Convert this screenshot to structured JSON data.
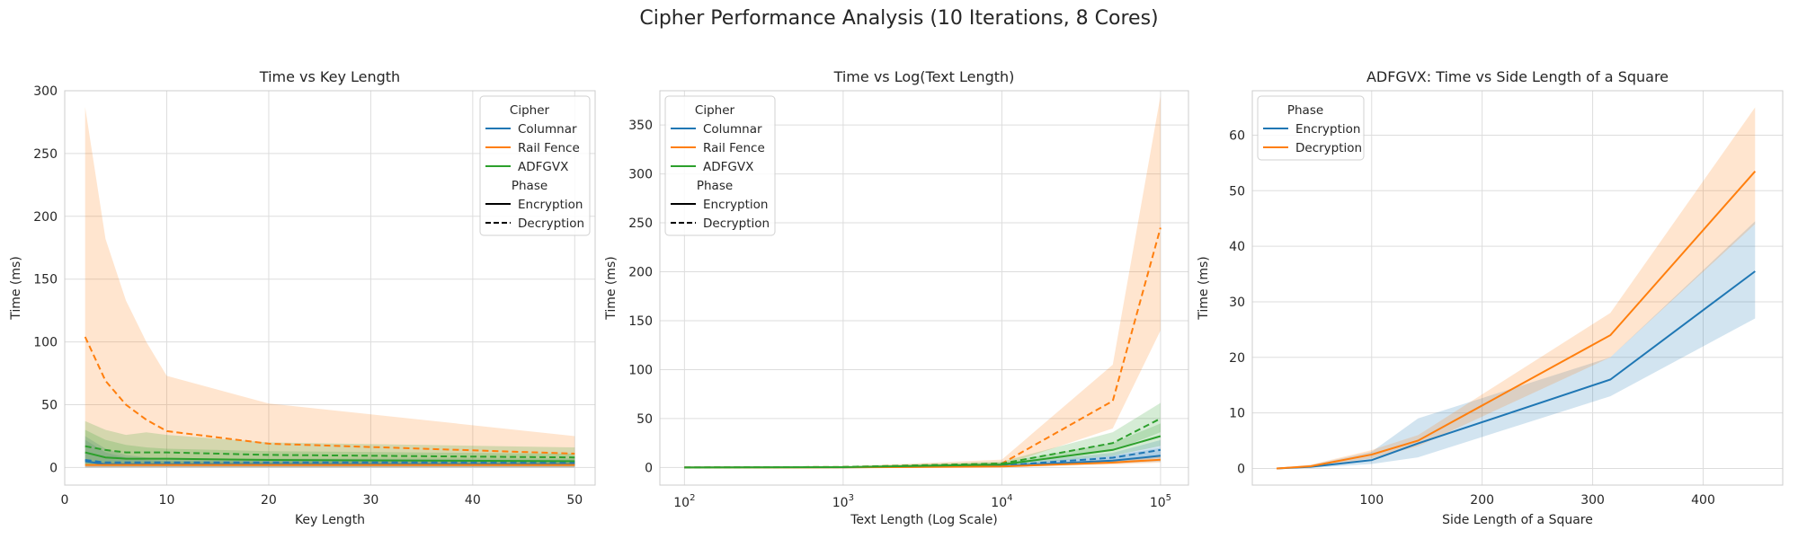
{
  "figure": {
    "title": "Cipher Performance Analysis (10 Iterations, 8 Cores)"
  },
  "colors": {
    "columnar": "#1f77b4",
    "rail_fence": "#ff7f0e",
    "adfgvx": "#2ca02c",
    "grid": "#dddddd",
    "spine": "#cccccc"
  },
  "chart_data": [
    {
      "type": "line",
      "title": "Time vs Key Length",
      "xlabel": "Key Length",
      "ylabel": "Time (ms)",
      "xscale": "linear",
      "xlim": [
        0,
        52
      ],
      "ylim": [
        -14,
        300
      ],
      "xticks": [
        0,
        10,
        20,
        30,
        40,
        50
      ],
      "yticks": [
        0,
        50,
        100,
        150,
        200,
        250,
        300
      ],
      "grid": true,
      "legend": {
        "position": "top-right",
        "groups": [
          {
            "title": "Cipher",
            "items": [
              {
                "label": "Columnar",
                "color": "#1f77b4",
                "dash": false
              },
              {
                "label": "Rail Fence",
                "color": "#ff7f0e",
                "dash": false
              },
              {
                "label": "ADFGVX",
                "color": "#2ca02c",
                "dash": false
              }
            ]
          },
          {
            "title": "Phase",
            "items": [
              {
                "label": "Encryption",
                "color": "#000000",
                "dash": false
              },
              {
                "label": "Decryption",
                "color": "#000000",
                "dash": true
              }
            ]
          }
        ]
      },
      "x": [
        2,
        4,
        6,
        8,
        10,
        20,
        50
      ],
      "series": [
        {
          "name": "Columnar",
          "phase": "Encryption",
          "color": "#1f77b4",
          "dash": false,
          "values": [
            5,
            2.5,
            2.5,
            2.5,
            2.5,
            2.5,
            2.5
          ],
          "ci_low": [
            0,
            0,
            0,
            0,
            0,
            0,
            0
          ],
          "ci_high": [
            22,
            12,
            8,
            6,
            5,
            5,
            5
          ]
        },
        {
          "name": "Columnar",
          "phase": "Decryption",
          "color": "#1f77b4",
          "dash": true,
          "values": [
            6,
            4,
            4,
            4,
            4,
            4,
            4
          ],
          "ci_low": [
            0,
            0,
            0,
            0,
            0,
            0,
            0
          ],
          "ci_high": [
            25,
            15,
            10,
            8,
            7,
            7,
            7
          ]
        },
        {
          "name": "Rail Fence",
          "phase": "Encryption",
          "color": "#ff7f0e",
          "dash": false,
          "values": [
            2,
            2,
            2,
            2,
            2,
            2,
            2
          ],
          "ci_low": [
            0,
            0,
            0,
            0,
            0,
            0,
            0
          ],
          "ci_high": [
            5,
            4,
            4,
            4,
            4,
            4,
            4
          ]
        },
        {
          "name": "Rail Fence",
          "phase": "Decryption",
          "color": "#ff7f0e",
          "dash": true,
          "values": [
            104,
            69,
            50,
            38,
            29,
            19,
            11
          ],
          "ci_low": [
            5,
            3,
            3,
            2,
            2,
            2,
            2
          ],
          "ci_high": [
            287,
            182,
            133,
            100,
            73,
            51,
            25
          ]
        },
        {
          "name": "ADFGVX",
          "phase": "Encryption",
          "color": "#2ca02c",
          "dash": false,
          "values": [
            12,
            8,
            7,
            7,
            7,
            6,
            5
          ],
          "ci_low": [
            2,
            1,
            1,
            1,
            1,
            1,
            1
          ],
          "ci_high": [
            30,
            22,
            18,
            16,
            15,
            13,
            11
          ]
        },
        {
          "name": "ADFGVX",
          "phase": "Decryption",
          "color": "#2ca02c",
          "dash": true,
          "values": [
            17,
            14,
            12,
            12,
            12,
            10,
            8
          ],
          "ci_low": [
            3,
            2,
            2,
            2,
            2,
            2,
            2
          ],
          "ci_high": [
            37,
            30,
            26,
            28,
            26,
            20,
            16
          ]
        }
      ]
    },
    {
      "type": "line",
      "title": "Time vs Log(Text Length)",
      "xlabel": "Text Length (Log Scale)",
      "ylabel": "Time (ms)",
      "xscale": "log",
      "xlim": [
        70,
        150000
      ],
      "ylim": [
        -18,
        385
      ],
      "xticks": [
        100,
        1000,
        10000,
        100000
      ],
      "xticklabels": [
        {
          "base": "10",
          "exp": "2"
        },
        {
          "base": "10",
          "exp": "3"
        },
        {
          "base": "10",
          "exp": "4"
        },
        {
          "base": "10",
          "exp": "5"
        }
      ],
      "yticks": [
        0,
        50,
        100,
        150,
        200,
        250,
        300,
        350
      ],
      "grid": true,
      "legend": {
        "position": "top-left",
        "groups": [
          {
            "title": "Cipher",
            "items": [
              {
                "label": "Columnar",
                "color": "#1f77b4",
                "dash": false
              },
              {
                "label": "Rail Fence",
                "color": "#ff7f0e",
                "dash": false
              },
              {
                "label": "ADFGVX",
                "color": "#2ca02c",
                "dash": false
              }
            ]
          },
          {
            "title": "Phase",
            "items": [
              {
                "label": "Encryption",
                "color": "#000000",
                "dash": false
              },
              {
                "label": "Decryption",
                "color": "#000000",
                "dash": true
              }
            ]
          }
        ]
      },
      "x": [
        100,
        1000,
        10000,
        50000,
        100000
      ],
      "series": [
        {
          "name": "Columnar",
          "phase": "Encryption",
          "color": "#1f77b4",
          "dash": false,
          "values": [
            0,
            0.2,
            1.5,
            7,
            12
          ],
          "ci_low": [
            0,
            0,
            0.5,
            4,
            6
          ],
          "ci_high": [
            0.1,
            0.5,
            3,
            12,
            20
          ]
        },
        {
          "name": "Columnar",
          "phase": "Decryption",
          "color": "#1f77b4",
          "dash": true,
          "values": [
            0,
            0.3,
            2,
            10,
            18
          ],
          "ci_low": [
            0,
            0.1,
            1,
            5,
            10
          ],
          "ci_high": [
            0.1,
            0.6,
            4,
            15,
            28
          ]
        },
        {
          "name": "Rail Fence",
          "phase": "Encryption",
          "color": "#ff7f0e",
          "dash": false,
          "values": [
            0,
            0.1,
            1,
            5,
            8
          ],
          "ci_low": [
            0,
            0,
            0.5,
            3,
            5
          ],
          "ci_high": [
            0.1,
            0.3,
            2,
            8,
            12
          ]
        },
        {
          "name": "Rail Fence",
          "phase": "Decryption",
          "color": "#ff7f0e",
          "dash": true,
          "values": [
            0,
            0.5,
            4,
            68,
            245
          ],
          "ci_low": [
            0,
            0.2,
            2,
            40,
            140
          ],
          "ci_high": [
            0.2,
            1,
            8,
            105,
            380
          ]
        },
        {
          "name": "ADFGVX",
          "phase": "Encryption",
          "color": "#2ca02c",
          "dash": false,
          "values": [
            0,
            0.4,
            3,
            18,
            32
          ],
          "ci_low": [
            0,
            0.2,
            2,
            12,
            22
          ],
          "ci_high": [
            0.2,
            0.8,
            5,
            25,
            45
          ]
        },
        {
          "name": "ADFGVX",
          "phase": "Decryption",
          "color": "#2ca02c",
          "dash": true,
          "values": [
            0,
            0.5,
            4,
            25,
            50
          ],
          "ci_low": [
            0,
            0.2,
            2,
            17,
            36
          ],
          "ci_high": [
            0.2,
            1,
            6,
            36,
            66
          ]
        }
      ]
    },
    {
      "type": "line",
      "title": "ADFGVX: Time vs Side Length of a Square",
      "xlabel": "Side Length of a Square",
      "ylabel": "Time (ms)",
      "xscale": "linear",
      "xlim": [
        -8,
        472
      ],
      "ylim": [
        -3,
        68
      ],
      "xticks": [
        100,
        200,
        300,
        400
      ],
      "yticks": [
        0,
        10,
        20,
        30,
        40,
        50,
        60
      ],
      "grid": true,
      "legend": {
        "position": "top-left",
        "groups": [
          {
            "title": "Phase",
            "items": [
              {
                "label": "Encryption",
                "color": "#1f77b4",
                "dash": false
              },
              {
                "label": "Decryption",
                "color": "#ff7f0e",
                "dash": false
              }
            ]
          }
        ]
      },
      "x": [
        14,
        45,
        100,
        142,
        316,
        447
      ],
      "series": [
        {
          "name": "Encryption",
          "color": "#1f77b4",
          "dash": false,
          "values": [
            0,
            0.3,
            1.5,
            4.5,
            16,
            35.5
          ],
          "ci_low": [
            0,
            0.1,
            0.8,
            2,
            13,
            27
          ],
          "ci_high": [
            0.1,
            0.6,
            3,
            9,
            20,
            44.5
          ]
        },
        {
          "name": "Decryption",
          "color": "#ff7f0e",
          "dash": false,
          "values": [
            0,
            0.4,
            2.5,
            5,
            24,
            53.5
          ],
          "ci_low": [
            0,
            0.2,
            1.8,
            4,
            20,
            44
          ],
          "ci_high": [
            0.1,
            0.7,
            3.3,
            6,
            28,
            65
          ]
        }
      ]
    }
  ]
}
